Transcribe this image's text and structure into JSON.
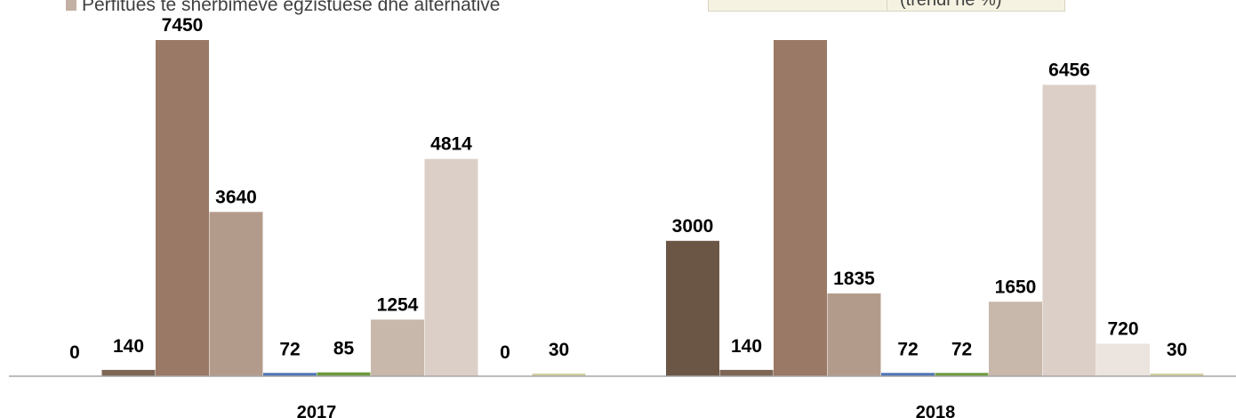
{
  "legend": {
    "visible_entry": "Përfitues të shërbimeve egzistuese dhe alternative",
    "visible_entry_color": "#c3b0a4"
  },
  "note": {
    "text": "(trendi në %)"
  },
  "chart_data": {
    "type": "bar",
    "categories": [
      "2017",
      "2018"
    ],
    "series": [
      {
        "color": "#6b5646",
        "values": [
          0,
          3000
        ]
      },
      {
        "color": "#7d6656",
        "values": [
          140,
          140
        ]
      },
      {
        "color": "#9a7966",
        "values": [
          7450,
          null
        ]
      },
      {
        "color": "#b39b8b",
        "values": [
          3640,
          1835
        ]
      },
      {
        "color": "#4e74b8",
        "values": [
          72,
          72
        ]
      },
      {
        "color": "#6c9a3c",
        "values": [
          85,
          72
        ]
      },
      {
        "color": "#c8b7ab",
        "values": [
          1254,
          1650
        ]
      },
      {
        "color": "#dccfc7",
        "values": [
          4814,
          6456
        ]
      },
      {
        "color": "#ebe4df",
        "values": [
          0,
          720
        ]
      },
      {
        "color": "#d2d0a0",
        "values": [
          30,
          30
        ]
      }
    ],
    "ylim": [
      0,
      8000
    ],
    "grid": false,
    "legend_position": "top"
  }
}
